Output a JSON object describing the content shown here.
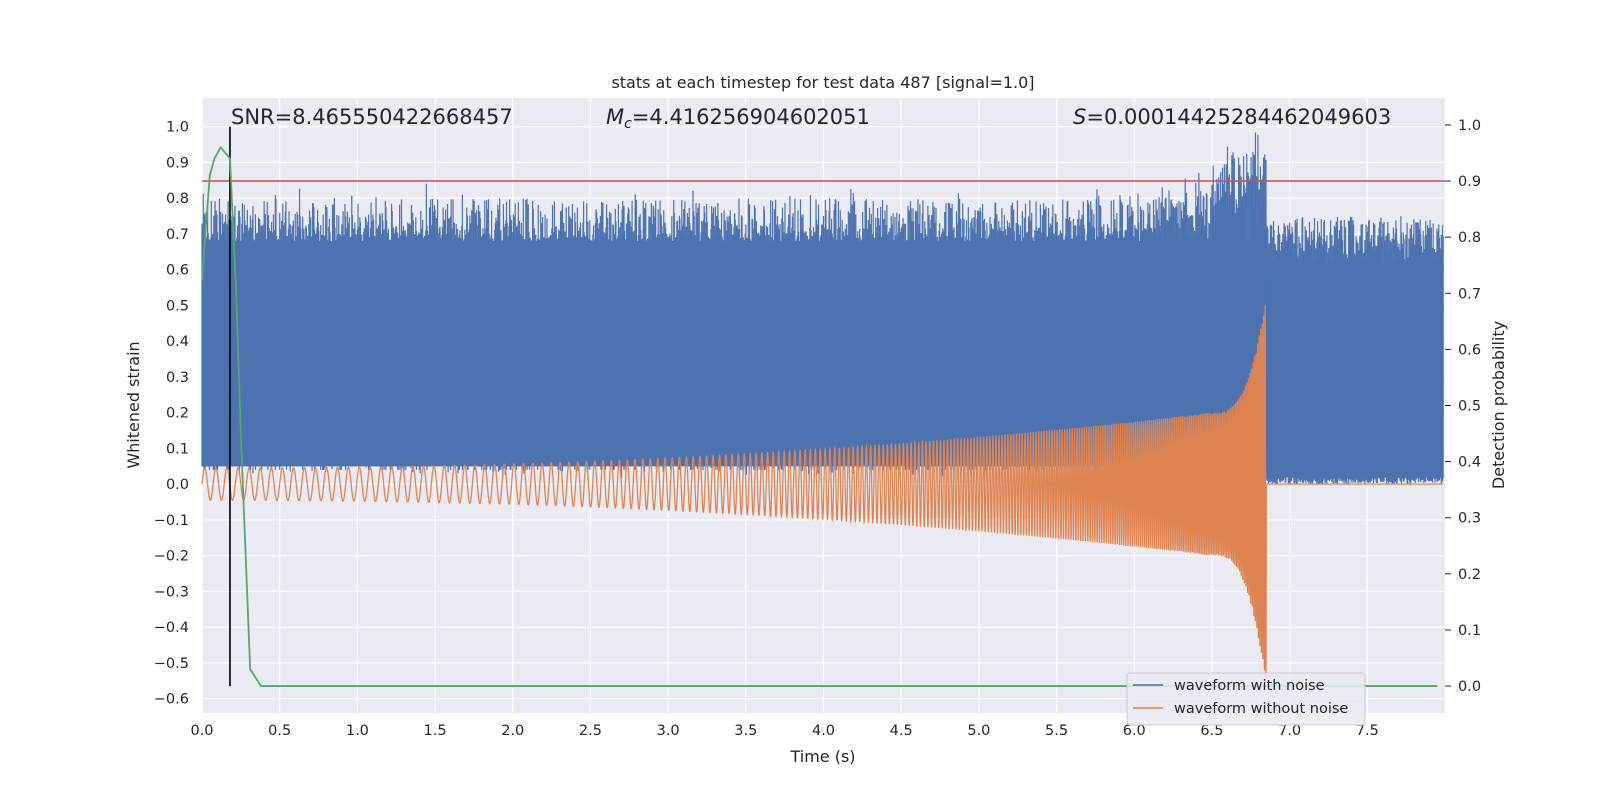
{
  "chart_data": {
    "type": "line",
    "title": "stats at each timestep for test data 487 [signal=1.0]",
    "xlabel": "Time (s)",
    "ylabel": "Whitened strain",
    "y2label": "Detection probability",
    "xlim": [
      0.0,
      8.0
    ],
    "ylim": [
      -0.64,
      1.08
    ],
    "y2lim": [
      -0.048,
      1.048
    ],
    "x_ticks": [
      0.0,
      0.5,
      1.0,
      1.5,
      2.0,
      2.5,
      3.0,
      3.5,
      4.0,
      4.5,
      5.0,
      5.5,
      6.0,
      6.5,
      7.0,
      7.5
    ],
    "x_tick_labels": [
      "0.0",
      "0.5",
      "1.0",
      "1.5",
      "2.0",
      "2.5",
      "3.0",
      "3.5",
      "4.0",
      "4.5",
      "5.0",
      "5.5",
      "6.0",
      "6.5",
      "7.0",
      "7.5"
    ],
    "y_ticks": [
      1.0,
      0.9,
      0.8,
      0.7,
      0.6,
      0.5,
      0.4,
      0.3,
      0.2,
      0.1,
      0.0,
      -0.1,
      -0.2,
      -0.3,
      -0.4,
      -0.5,
      -0.6
    ],
    "y_tick_labels": [
      "1.0",
      "0.9",
      "0.8",
      "0.7",
      "0.6",
      "0.5",
      "0.4",
      "0.3",
      "0.2",
      "0.1",
      "0.0",
      "−0.1",
      "−0.2",
      "−0.3",
      "−0.4",
      "−0.5",
      "−0.6"
    ],
    "y2_ticks": [
      1.0,
      0.9,
      0.8,
      0.7,
      0.6,
      0.5,
      0.4,
      0.3,
      0.2,
      0.1,
      0.0
    ],
    "y2_tick_labels": [
      "1.0",
      "0.9",
      "0.8",
      "0.7",
      "0.6",
      "0.5",
      "0.4",
      "0.3",
      "0.2",
      "0.1",
      "0.0"
    ],
    "annotations": {
      "snr": "SNR=8.465550422668457",
      "mc_symbol": "M",
      "mc_sub": "c",
      "mc_value": "=4.416256904602051",
      "s_symbol": "S",
      "s_value": "=0.00014425284462049603"
    },
    "threshold_line": {
      "y2": 0.9,
      "color": "#c44e52"
    },
    "marker_line": {
      "x": 0.18,
      "color": "#000000"
    },
    "merger_time": 6.85,
    "series": [
      {
        "name": "waveform with noise",
        "color": "#4c72b0",
        "description_values": {
          "base_lo": 0.05,
          "base_hi": 0.68,
          "peak_max": 1.0,
          "post_merger_lo": 0.0,
          "post_merger_hi": 0.75
        }
      },
      {
        "name": "waveform without noise",
        "color": "#dd8452",
        "description_values": {
          "amp_start": 0.045,
          "amp_at_6_5": 0.2,
          "peak_pos": 0.53,
          "peak_neg": -0.57,
          "after_merger": 0.0
        }
      },
      {
        "name": "detection probability",
        "color": "#55a868",
        "axis": "right",
        "x": [
          0.0,
          0.02,
          0.05,
          0.08,
          0.12,
          0.18,
          0.22,
          0.25,
          0.31,
          0.38,
          0.5,
          1.0,
          2.0,
          3.0,
          4.0,
          5.0,
          6.0,
          7.0,
          7.95
        ],
        "values": [
          0.72,
          0.8,
          0.91,
          0.94,
          0.96,
          0.94,
          0.7,
          0.45,
          0.03,
          0.0,
          0.0,
          0.0,
          0.0,
          0.0,
          0.0,
          0.0,
          0.0,
          0.0,
          0.0
        ]
      }
    ],
    "legend": {
      "location": "lower-right",
      "entries": [
        {
          "label": "waveform with noise",
          "color": "#4c72b0"
        },
        {
          "label": "waveform without noise",
          "color": "#dd8452"
        }
      ]
    }
  }
}
